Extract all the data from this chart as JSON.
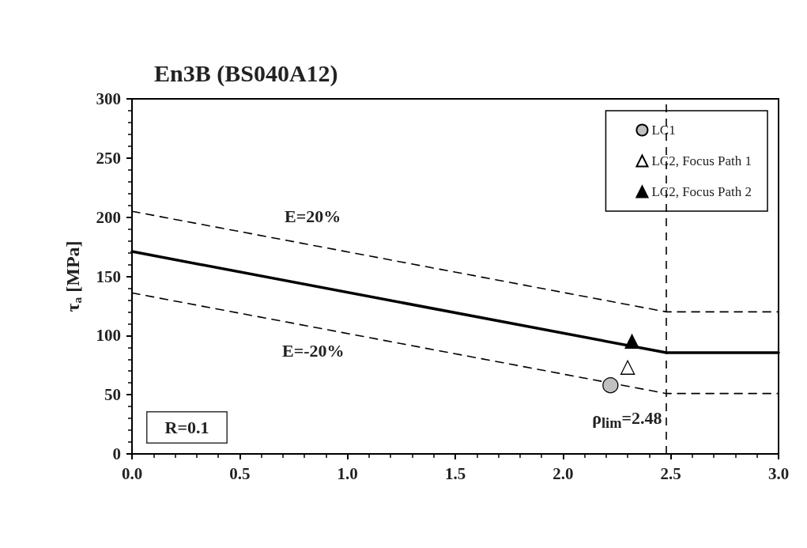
{
  "chart_data": {
    "type": "line",
    "title": "En3B (BS040A12)",
    "ylabel": "τ$_{a}$ [MPa]",
    "xlim": [
      0,
      3
    ],
    "xticks": [
      {
        "value": 0,
        "label": "0.0"
      },
      {
        "value": 0.5,
        "label": "0.5"
      },
      {
        "value": 1,
        "label": "1.0"
      },
      {
        "value": 1.5,
        "label": "1.5"
      },
      {
        "value": 2,
        "label": "2.0"
      },
      {
        "value": 2.5,
        "label": "2.5"
      },
      {
        "value": 3,
        "label": "3.0"
      }
    ],
    "ylim": [
      0,
      300
    ],
    "yticks": [
      0,
      50,
      100,
      150,
      200,
      250,
      300
    ],
    "grid": false,
    "legend": "top right",
    "series": [
      {
        "x": [
          0,
          2.48,
          3
        ],
        "values": [
          171,
          85.5,
          85.5
        ],
        "color": "#000000",
        "line_style": "solid",
        "marker": "none"
      },
      {
        "x": [
          0,
          2.48,
          3
        ],
        "values": [
          205,
          120,
          120
        ],
        "color": "#000000",
        "line_style": "dashed",
        "marker": "none"
      },
      {
        "x": [
          0,
          2.48,
          3
        ],
        "values": [
          136,
          51,
          51
        ],
        "color": "#000000",
        "line_style": "dashed",
        "marker": "none"
      },
      {
        "type": "scatter",
        "name": "LC1",
        "x": [
          2.22
        ],
        "values": [
          58
        ],
        "color": "#c0c0c0",
        "marker": "circle"
      },
      {
        "type": "scatter",
        "name": "LC2, Focus Path 1",
        "x": [
          2.3
        ],
        "values": [
          73
        ],
        "color": "#ffffff",
        "marker": "triangle"
      },
      {
        "type": "scatter",
        "name": "LC2, Focus Path 2",
        "x": [
          2.32
        ],
        "values": [
          95
        ],
        "color": "#000000",
        "marker": "triangle"
      }
    ],
    "ref_lines": [
      {
        "axis": "x",
        "value": 2.48,
        "label": "ρ$_{lim}$=2.48",
        "line_style": "dashed"
      }
    ],
    "annotations": [
      "E=20%",
      "E=-20%",
      "R=0.1"
    ]
  }
}
